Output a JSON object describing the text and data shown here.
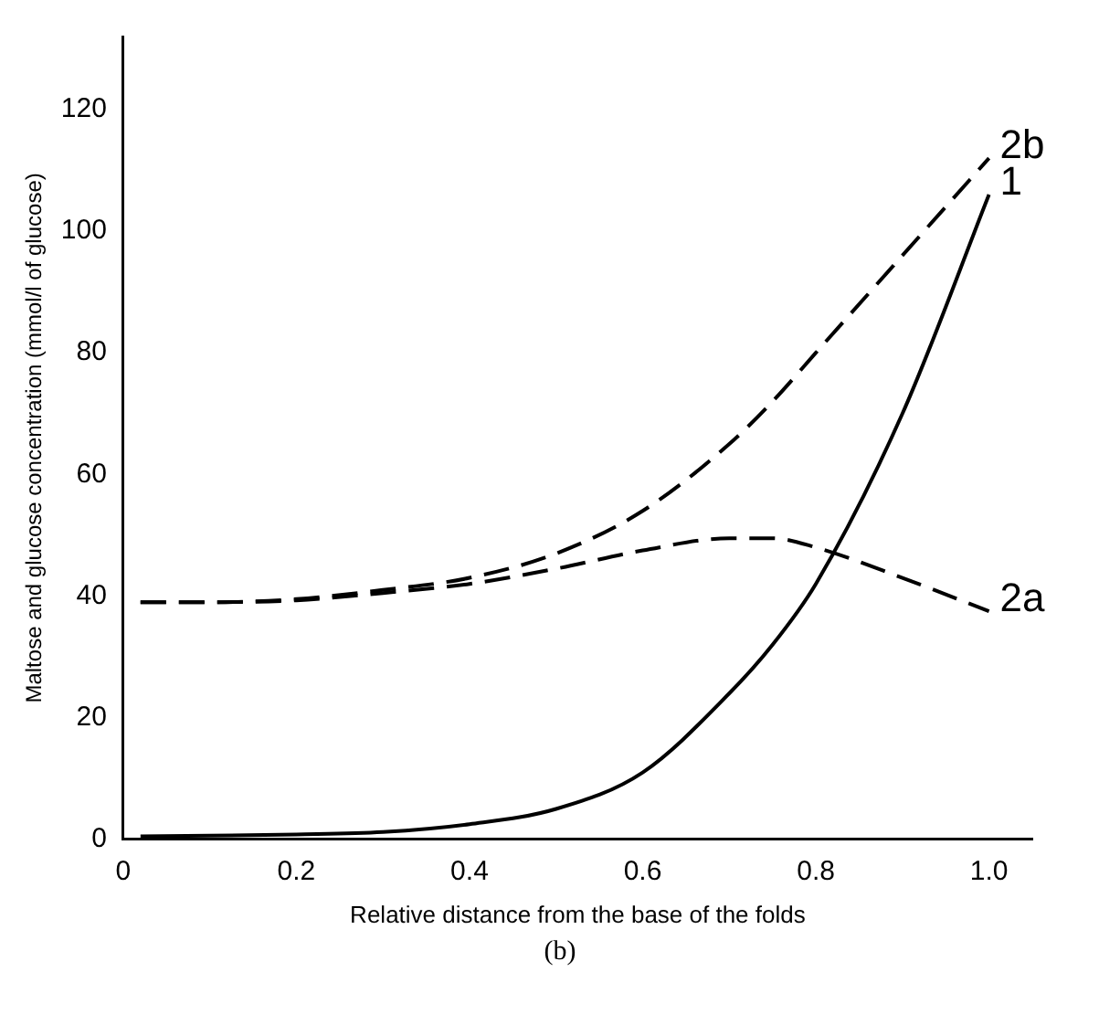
{
  "chart_data": {
    "type": "line",
    "xlabel": "Relative distance from the base of the folds",
    "ylabel": "Maltose and glucose concentration (mmol/l of glucose)",
    "x": [
      0.02,
      0.1,
      0.2,
      0.3,
      0.4,
      0.5,
      0.6,
      0.7,
      0.75,
      0.8,
      0.9,
      1.0
    ],
    "series": [
      {
        "name": "1",
        "color": "#000000",
        "line_style": "solid",
        "values": [
          0.5,
          0.6,
          0.8,
          1.2,
          2.5,
          5,
          11,
          24,
          32,
          42,
          70,
          106
        ]
      },
      {
        "name": "2a",
        "color": "#000000",
        "line_style": "dashed",
        "values": [
          39,
          39,
          39.3,
          40.5,
          42,
          44.5,
          47.5,
          49.5,
          49.5,
          48,
          43,
          37.5
        ]
      },
      {
        "name": "2b",
        "color": "#000000",
        "line_style": "dashed",
        "values": [
          39,
          39,
          39.5,
          41,
          43,
          47,
          54,
          65,
          72,
          80,
          96,
          112
        ]
      }
    ],
    "xlim": [
      0,
      1.05
    ],
    "xticks": [
      0,
      0.2,
      0.4,
      0.6,
      0.8,
      {
        "value": 1,
        "label": "1.0"
      }
    ],
    "ylim": [
      0,
      132
    ],
    "yticks": [
      0,
      20,
      40,
      60,
      80,
      100,
      120
    ],
    "grid": false,
    "legend": false,
    "marker": "none",
    "annotations": [
      "(b)"
    ]
  }
}
